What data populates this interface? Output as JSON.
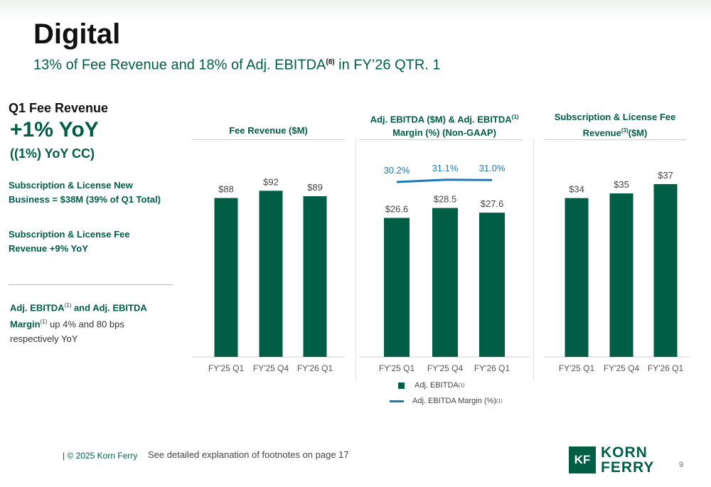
{
  "header": {
    "title": "Digital",
    "subtitle_pre": "13% of Fee Revenue and 18% of Adj. EBITDA",
    "subtitle_sup": "(8)",
    "subtitle_post": " in FY’26 QTR. 1"
  },
  "highlights": {
    "q1_label": "Q1 Fee Revenue",
    "yoy": "+1% YoY",
    "yoy_cc": "((1%) YoY CC)",
    "item1_line1": "Subscription & License New",
    "item1_line2": "Business = $38M (39% of Q1 Total)",
    "item2_line1": "Subscription & License Fee",
    "item2_line2": "Revenue +9% YoY",
    "note_a": "Adj. EBITDA",
    "note_sup1": "(1)",
    "note_b": " and Adj. EBITDA",
    "note_c": "Margin",
    "note_sup2": "(1)",
    "note_d": "  up 4% and 80 bps respectively YoY"
  },
  "chart_titles": {
    "fee": "Fee Revenue ($M)",
    "ebitda_l1_a": "Adj. EBITDA ($M) & Adj. EBITDA",
    "ebitda_sup": "(1)",
    "ebitda_l2": "Margin (%) (Non-GAAP)",
    "sub_l1": "Subscription & License Fee",
    "sub_l2_a": "Revenue",
    "sub_sup": "(3)",
    "sub_l2_b": "($M)"
  },
  "legend": {
    "bar_label": "Adj. EBITDA",
    "bar_sup": "(1)",
    "line_label": "Adj. EBITDA Margin (%)",
    "line_sup": "(1)"
  },
  "colors": {
    "bar": "#005e45",
    "line": "#1f77b4",
    "label": "#444444",
    "line_label": "#1f77b4"
  },
  "chart_data": [
    {
      "type": "bar",
      "title": "Fee Revenue ($M)",
      "categories": [
        "FY'25 Q1",
        "FY'25 Q4",
        "FY'26 Q1"
      ],
      "values": [
        88,
        92,
        89
      ],
      "value_labels": [
        "$88",
        "$92",
        "$89"
      ]
    },
    {
      "type": "bar",
      "title": "Adj. EBITDA ($M) & Adj. EBITDA(1) Margin (%) (Non-GAAP)",
      "categories": [
        "FY'25 Q1",
        "FY'25 Q4",
        "FY'26 Q1"
      ],
      "series": [
        {
          "name": "Adj. EBITDA(1)",
          "type": "bar",
          "values": [
            26.6,
            28.5,
            27.6
          ],
          "labels": [
            "$26.6",
            "$28.5",
            "$27.6"
          ]
        },
        {
          "name": "Adj. EBITDA Margin (%)(1)",
          "type": "line",
          "values": [
            30.2,
            31.1,
            31.0
          ],
          "labels": [
            "30.2%",
            "31.1%",
            "31.0%"
          ]
        }
      ]
    },
    {
      "type": "bar",
      "title": "Subscription & License Fee Revenue(3)($M)",
      "categories": [
        "FY'25 Q1",
        "FY'25 Q4",
        "FY'26 Q1"
      ],
      "values": [
        34,
        35,
        37
      ],
      "value_labels": [
        "$34",
        "$35",
        "$37"
      ]
    }
  ],
  "footer": {
    "copyright": "| © 2025 Korn Ferry",
    "note": "See detailed explanation of footnotes on page 17",
    "logo_mark": "KF",
    "logo_line1": "KORN",
    "logo_line2": "FERRY",
    "page": "9"
  }
}
